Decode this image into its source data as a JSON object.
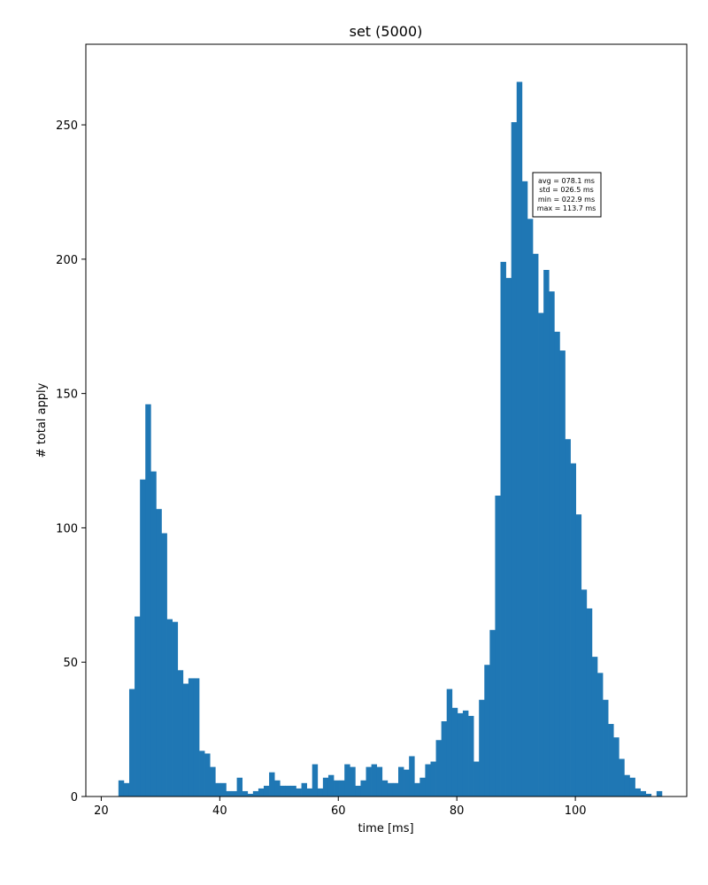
{
  "chart_data": {
    "type": "bar",
    "title": "set (5000)",
    "xlabel": "time [ms]",
    "ylabel": "# total apply",
    "xlim": [
      17.4,
      118.8
    ],
    "ylim": [
      0,
      280
    ],
    "xticks": [
      20,
      40,
      60,
      80,
      100
    ],
    "yticks": [
      0,
      50,
      100,
      150,
      200,
      250
    ],
    "grid": false,
    "bar_color": "#1f77b4",
    "bin_start": 22.9,
    "bin_width": 0.908,
    "counts": [
      6,
      5,
      40,
      67,
      118,
      146,
      121,
      107,
      98,
      66,
      65,
      47,
      42,
      44,
      44,
      17,
      16,
      11,
      5,
      5,
      2,
      2,
      7,
      2,
      1,
      2,
      3,
      4,
      9,
      6,
      4,
      4,
      4,
      3,
      5,
      3,
      12,
      3,
      7,
      8,
      6,
      6,
      12,
      11,
      4,
      6,
      11,
      12,
      11,
      6,
      5,
      5,
      11,
      10,
      15,
      5,
      7,
      12,
      13,
      21,
      28,
      40,
      33,
      31,
      32,
      30,
      13,
      36,
      49,
      62,
      112,
      199,
      193,
      251,
      266,
      229,
      215,
      202,
      180,
      196,
      188,
      173,
      166,
      133,
      124,
      105,
      77,
      70,
      52,
      46,
      36,
      27,
      22,
      14,
      8,
      7,
      3,
      2,
      1,
      0,
      2
    ],
    "stats_box": {
      "position": "upper-right",
      "lines": [
        "avg = 078.1 ms",
        "std = 026.5 ms",
        "min = 022.9 ms",
        "max = 113.7 ms"
      ]
    }
  }
}
